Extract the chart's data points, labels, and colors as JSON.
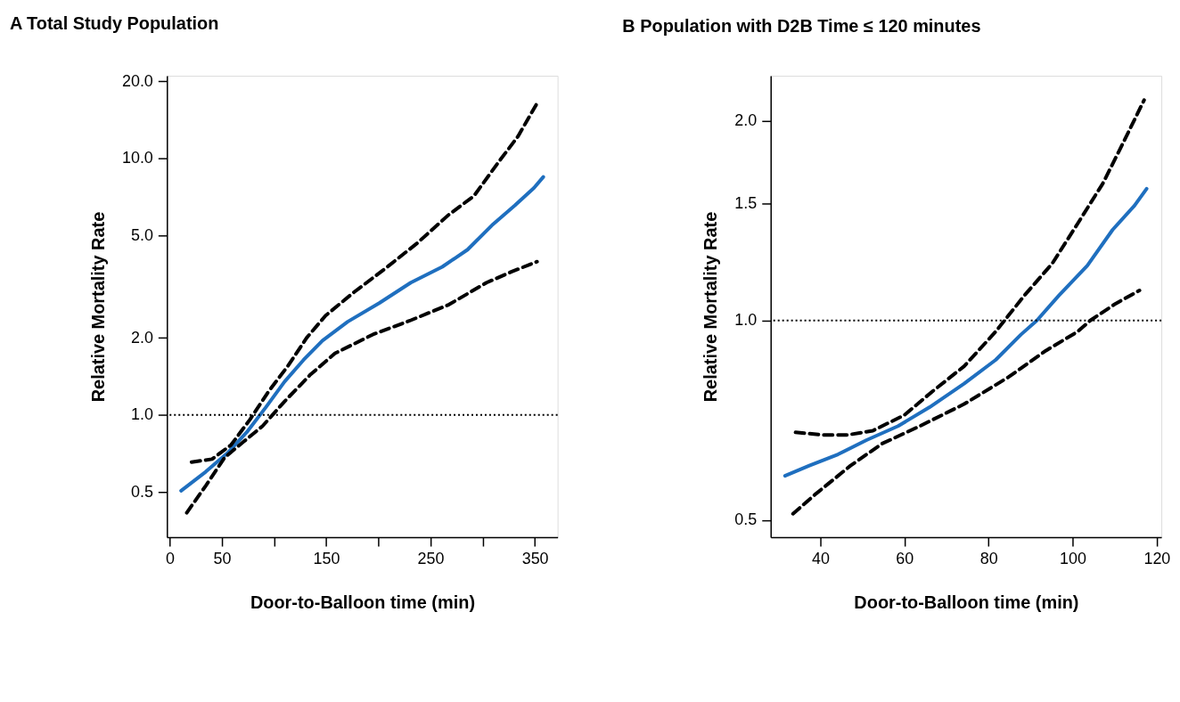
{
  "chart_data": [
    {
      "type": "line",
      "title": "A Total Study Population",
      "xlabel": "Door-to-Balloon time (min)",
      "ylabel": "Relative Mortality Rate",
      "log": "y",
      "grid": false,
      "marker": "none",
      "xlim": [
        -2.7,
        371.8
      ],
      "xticks": [
        0,
        50,
        {
          "value": 100,
          "label": null
        },
        150,
        {
          "value": 200,
          "label": null
        },
        250,
        {
          "value": 300,
          "label": null
        },
        350
      ],
      "ylim": [
        0.334,
        21.0
      ],
      "yticks": [
        {
          "value": 0.5,
          "label": "0.5"
        },
        {
          "value": 1,
          "label": "1.0"
        },
        {
          "value": 2,
          "label": "2.0"
        },
        {
          "value": 5,
          "label": "5.0"
        },
        {
          "value": 10,
          "label": "10.0"
        },
        {
          "value": 20,
          "label": "20.0"
        }
      ],
      "ref_lines": [
        {
          "axis": "y",
          "value": 1,
          "color": "#000000",
          "line_style": "dotted"
        }
      ],
      "series": [
        {
          "color": "#1f6fbf",
          "line_style": "solid",
          "x": [
            10.9,
            34.5,
            55.7,
            73.8,
            92.0,
            110.1,
            128.3,
            146.4,
            170.6,
            200.8,
            231.1,
            261.3,
            285.5,
            309.7,
            330.9,
            349.1,
            358.1
          ],
          "values": [
            0.507,
            0.601,
            0.713,
            0.857,
            1.07,
            1.35,
            1.64,
            1.95,
            2.31,
            2.73,
            3.28,
            3.78,
            4.41,
            5.53,
            6.56,
            7.67,
            8.47
          ]
        },
        {
          "color": "#000000",
          "line_style": "dashed",
          "x": [
            20.9,
            40.5,
            58.7,
            76.8,
            95.0,
            113.1,
            131.3,
            149.4,
            176.6,
            206.9,
            237.1,
            267.4,
            291.6,
            315.8,
            333.9,
            352.1
          ],
          "values": [
            0.655,
            0.673,
            0.764,
            0.959,
            1.24,
            1.55,
            2.0,
            2.44,
            3.01,
            3.73,
            4.67,
            6.03,
            7.14,
            9.75,
            12.2,
            16.4
          ]
        },
        {
          "color": "#000000",
          "line_style": "dashed",
          "x": [
            16.3,
            34.5,
            52.6,
            70.8,
            89.0,
            110.1,
            134.3,
            158.5,
            194.8,
            231.1,
            267.4,
            303.7,
            327.9,
            352.1
          ],
          "values": [
            0.416,
            0.53,
            0.683,
            0.787,
            0.906,
            1.13,
            1.43,
            1.74,
            2.06,
            2.34,
            2.69,
            3.28,
            3.62,
            3.96
          ]
        }
      ]
    },
    {
      "type": "line",
      "title": "B Population with D2B Time ≤ 120 minutes",
      "xlabel": "Door-to-Balloon time (min)",
      "ylabel": "Relative Mortality Rate",
      "log": "y",
      "grid": false,
      "marker": "none",
      "xlim": [
        28.2,
        121.1
      ],
      "xticks": [
        40,
        60,
        80,
        100,
        120
      ],
      "ylim": [
        0.471,
        2.34
      ],
      "yticks": [
        {
          "value": 0.5,
          "label": "0.5"
        },
        {
          "value": 1,
          "label": "1.0"
        },
        {
          "value": 1.5,
          "label": "1.5"
        },
        {
          "value": 2,
          "label": "2.0"
        }
      ],
      "ref_lines": [
        {
          "axis": "y",
          "value": 1,
          "color": "#000000",
          "line_style": "dotted"
        }
      ],
      "series": [
        {
          "color": "#1f6fbf",
          "line_style": "solid",
          "x": [
            31.6,
            37.4,
            44.2,
            51.0,
            58.5,
            66.0,
            74.2,
            81.7,
            87.7,
            91.5,
            96.7,
            103.5,
            109.5,
            114.7,
            117.6
          ],
          "values": [
            0.583,
            0.604,
            0.628,
            0.66,
            0.693,
            0.74,
            0.803,
            0.872,
            0.952,
            1.0,
            1.09,
            1.21,
            1.37,
            1.49,
            1.58
          ]
        },
        {
          "color": "#000000",
          "line_style": "dashed",
          "x": [
            34.1,
            40.5,
            46.5,
            52.5,
            60.0,
            66.7,
            74.2,
            81.7,
            88.5,
            95.2,
            101.2,
            107.2,
            112.5,
            117.0
          ],
          "values": [
            0.678,
            0.672,
            0.672,
            0.682,
            0.72,
            0.782,
            0.853,
            0.962,
            1.09,
            1.22,
            1.4,
            1.61,
            1.88,
            2.15
          ]
        },
        {
          "color": "#000000",
          "line_style": "dashed",
          "x": [
            33.5,
            39.0,
            47.2,
            54.7,
            63.7,
            74.2,
            84.7,
            93.7,
            101.2,
            104.2,
            110.2,
            115.9
          ],
          "values": [
            0.511,
            0.548,
            0.604,
            0.652,
            0.693,
            0.748,
            0.821,
            0.901,
            0.962,
            1.0,
            1.06,
            1.11
          ]
        }
      ]
    }
  ]
}
